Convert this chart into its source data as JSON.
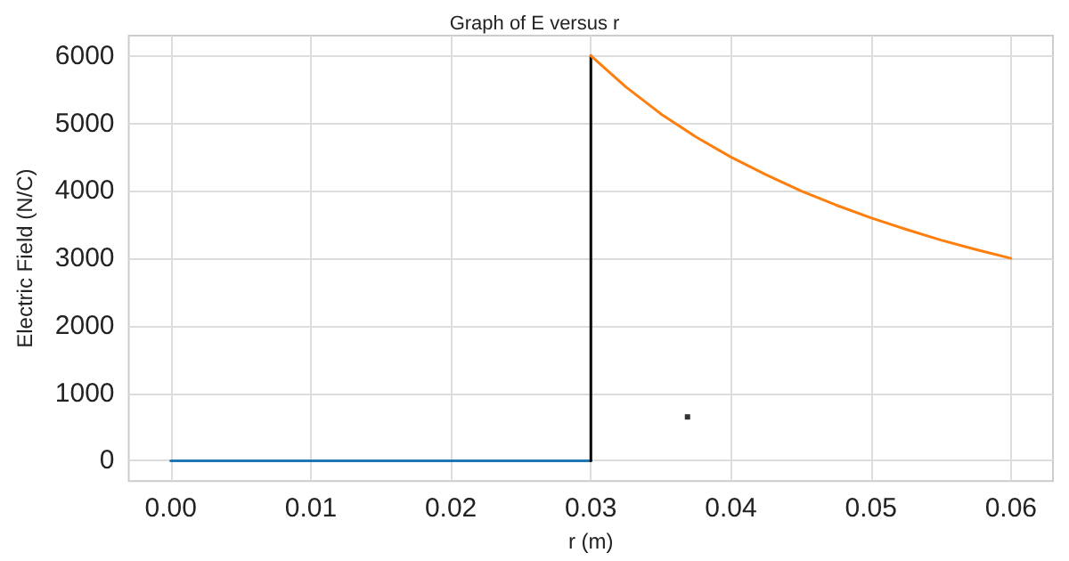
{
  "chart_data": {
    "type": "line",
    "title": "Graph of E versus r",
    "xlabel": "r (m)",
    "ylabel": "Electric Field (N/C)",
    "xlim": [
      -0.003,
      0.063
    ],
    "xticks": [
      {
        "value": 0,
        "label": "0.00"
      },
      {
        "value": 0.01,
        "label": "0.01"
      },
      {
        "value": 0.02,
        "label": "0.02"
      },
      {
        "value": 0.03,
        "label": "0.03"
      },
      {
        "value": 0.04,
        "label": "0.04"
      },
      {
        "value": 0.05,
        "label": "0.05"
      },
      {
        "value": 0.06,
        "label": "0.06"
      }
    ],
    "ylim": [
      -300,
      6300
    ],
    "yticks": [
      0,
      1000,
      2000,
      3000,
      4000,
      5000,
      6000
    ],
    "grid": true,
    "marker": "none",
    "line_style": "solid",
    "series": [
      {
        "color": "#1f77b4",
        "x": [
          0,
          0.03
        ],
        "values": [
          0,
          0
        ]
      },
      {
        "color": "#000000",
        "x": [
          0.03,
          0.03
        ],
        "values": [
          0,
          6000
        ]
      },
      {
        "color": "#ff7f0e",
        "x": [
          0.03,
          0.0325,
          0.035,
          0.0375,
          0.04,
          0.0425,
          0.045,
          0.0475,
          0.05,
          0.0525,
          0.055,
          0.0575,
          0.06
        ],
        "values": [
          6000,
          5540,
          5140,
          4800,
          4500,
          4240,
          4000,
          3790,
          3600,
          3430,
          3270,
          3130,
          3000
        ]
      },
      {
        "type": "scatter",
        "marker": "square",
        "color": "#000000",
        "x": [
          0.0369
        ],
        "values": [
          650
        ]
      }
    ]
  }
}
